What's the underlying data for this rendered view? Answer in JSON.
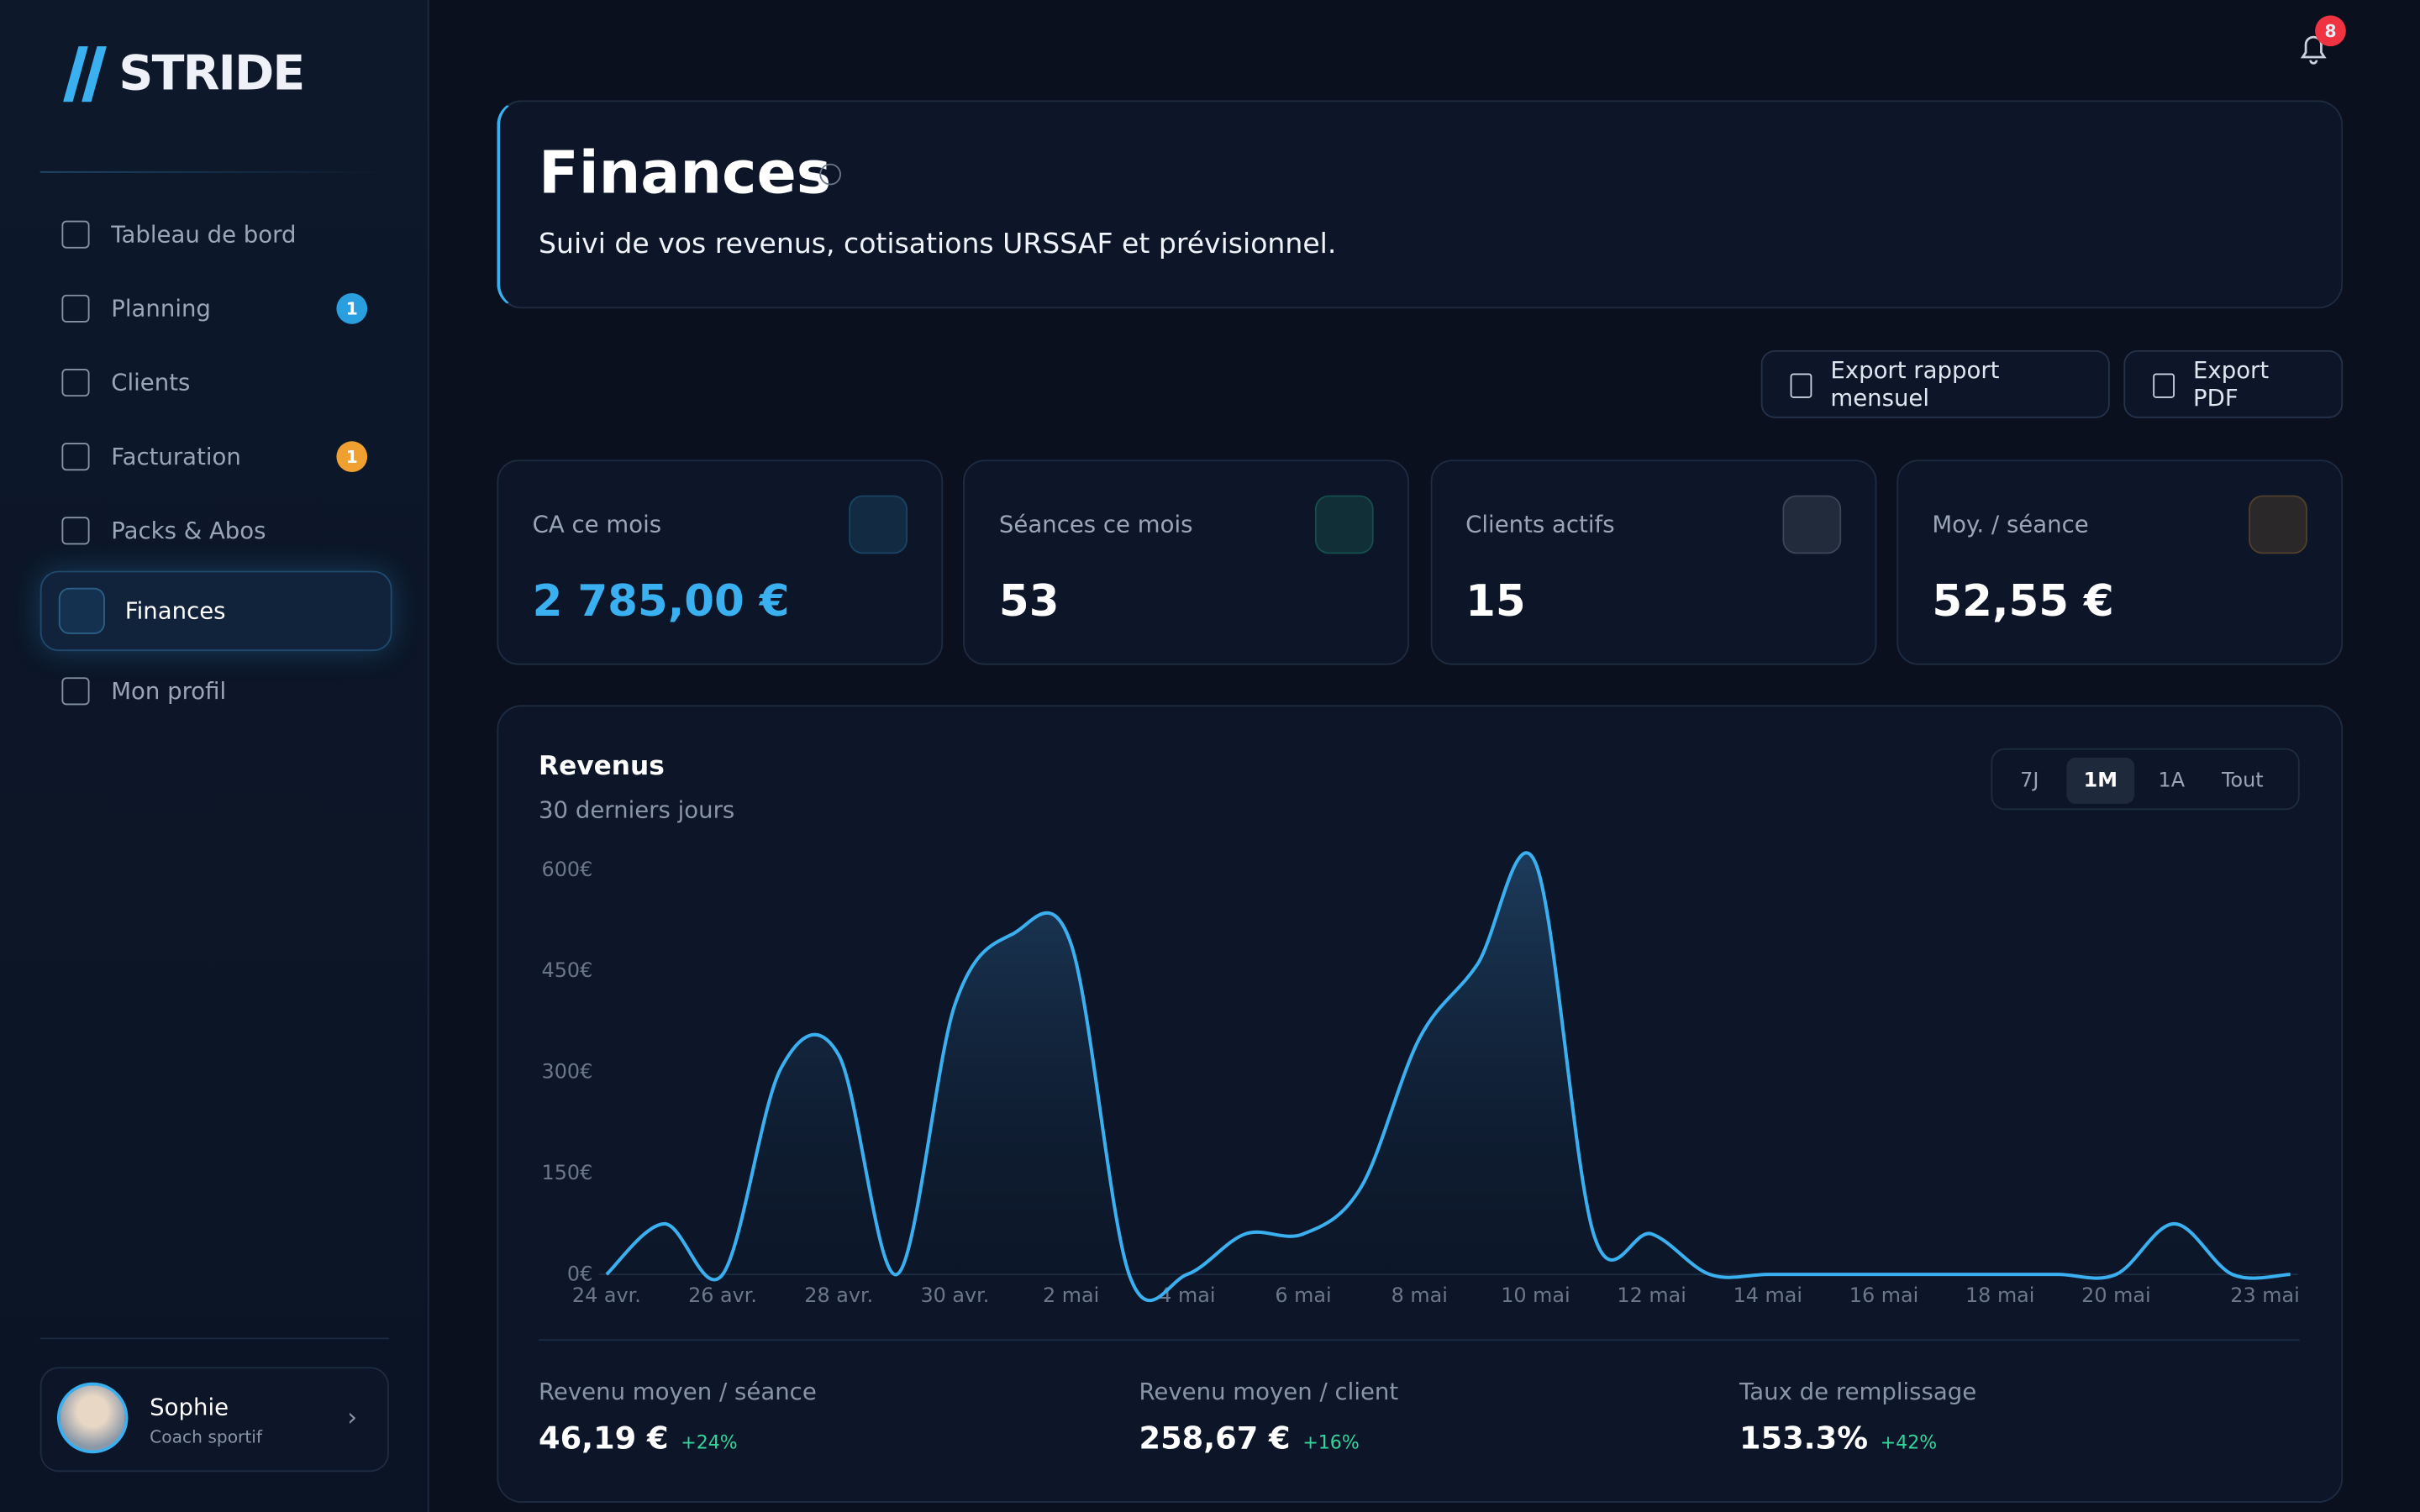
{
  "sidebar": {
    "brand": "STRIDE",
    "nav": [
      {
        "label": "Tableau de bord"
      },
      {
        "label": "Planning",
        "badge": 1
      },
      {
        "label": "Clients"
      },
      {
        "label": "Facturation",
        "badge": 1
      },
      {
        "label": "Packs & Abos"
      },
      {
        "label": "Finances",
        "active": true
      },
      {
        "label": "Mon profil"
      }
    ],
    "user": {
      "name": "Sophie",
      "role": "Coach sportif"
    }
  },
  "notifications": 8,
  "header": {
    "title": "Finances",
    "subtitle": "Suivi de vos revenus, cotisations URSSAF et prévisionnel."
  },
  "actions": [
    "Export rapport mensuel",
    "Export PDF"
  ],
  "kpis": [
    {
      "label": "CA ce mois",
      "value": "2 785,00 €"
    },
    {
      "label": "Séances ce mois",
      "value": "53"
    },
    {
      "label": "Clients actifs",
      "value": "15"
    },
    {
      "label": "Moy. / séance",
      "value": "52,55 €"
    }
  ],
  "chart_data": {
    "type": "line",
    "title": "Revenus",
    "subtitle": "30 derniers jours",
    "periods": [
      "7J",
      "1M",
      "1A",
      "Tout"
    ],
    "active_period": 1,
    "categories": [
      "24 avr.",
      null,
      "26 avr.",
      null,
      "28 avr.",
      null,
      "30 avr.",
      null,
      "2 mai",
      null,
      "4 mai",
      null,
      "6 mai",
      null,
      "8 mai",
      null,
      "10 mai",
      null,
      "12 mai",
      null,
      "14 mai",
      null,
      "16 mai",
      null,
      "18 mai",
      null,
      "20 mai",
      null,
      null,
      "23 mai"
    ],
    "values": [
      0,
      75,
      0,
      305,
      325,
      0,
      400,
      505,
      490,
      0,
      0,
      60,
      60,
      130,
      350,
      460,
      610,
      60,
      60,
      0,
      0,
      0,
      0,
      0,
      0,
      0,
      0,
      75,
      0,
      0
    ],
    "color": "#3bb0f0",
    "ylim": [
      0,
      620
    ],
    "yticks": [
      {
        "value": 0,
        "label": "0€"
      },
      {
        "value": 150,
        "label": "150€"
      },
      {
        "value": 300,
        "label": "300€"
      },
      {
        "value": 450,
        "label": "450€"
      },
      {
        "value": 600,
        "label": "600€"
      }
    ]
  },
  "stats": [
    {
      "label": "Revenu moyen / séance",
      "value": "46,19 €",
      "change": "+24%"
    },
    {
      "label": "Revenu moyen / client",
      "value": "258,67 €",
      "change": "+16%"
    },
    {
      "label": "Taux de remplissage",
      "value": "153.3%",
      "change": "+42%"
    }
  ]
}
